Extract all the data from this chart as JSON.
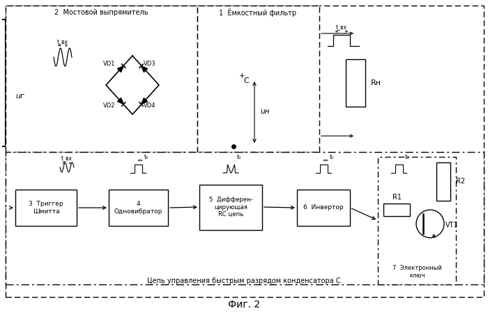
{
  "title": "Фиг. 2",
  "background_color": "#ffffff",
  "fig_width": 7.0,
  "fig_height": 4.49,
  "dpi": 100,
  "labels": {
    "block2": "2  Мостовой выпрямитель",
    "block1": "1  Ёмкостный фильтр",
    "VD1": "VD1",
    "VD2": "VD2",
    "VD3": "VD3",
    "VD4": "VD4",
    "C": "C",
    "u_n": "uн",
    "u_g": "uг",
    "R_n": "Rн",
    "R1": "R1",
    "R2": "R2",
    "VT1": "VT1",
    "block3": "3  Триггер\nШмитта",
    "block4": "4\nОдновибратор",
    "block5": "5  Дифферен-\nцирующая\nRC цепь",
    "block6": "6  Инвертор",
    "block7": "7  Электронный\nключ",
    "t_vx": "t_вх",
    "t0": "t₀",
    "bottom_label": "Цепь управления быстрым разрядом конденсатора С"
  }
}
